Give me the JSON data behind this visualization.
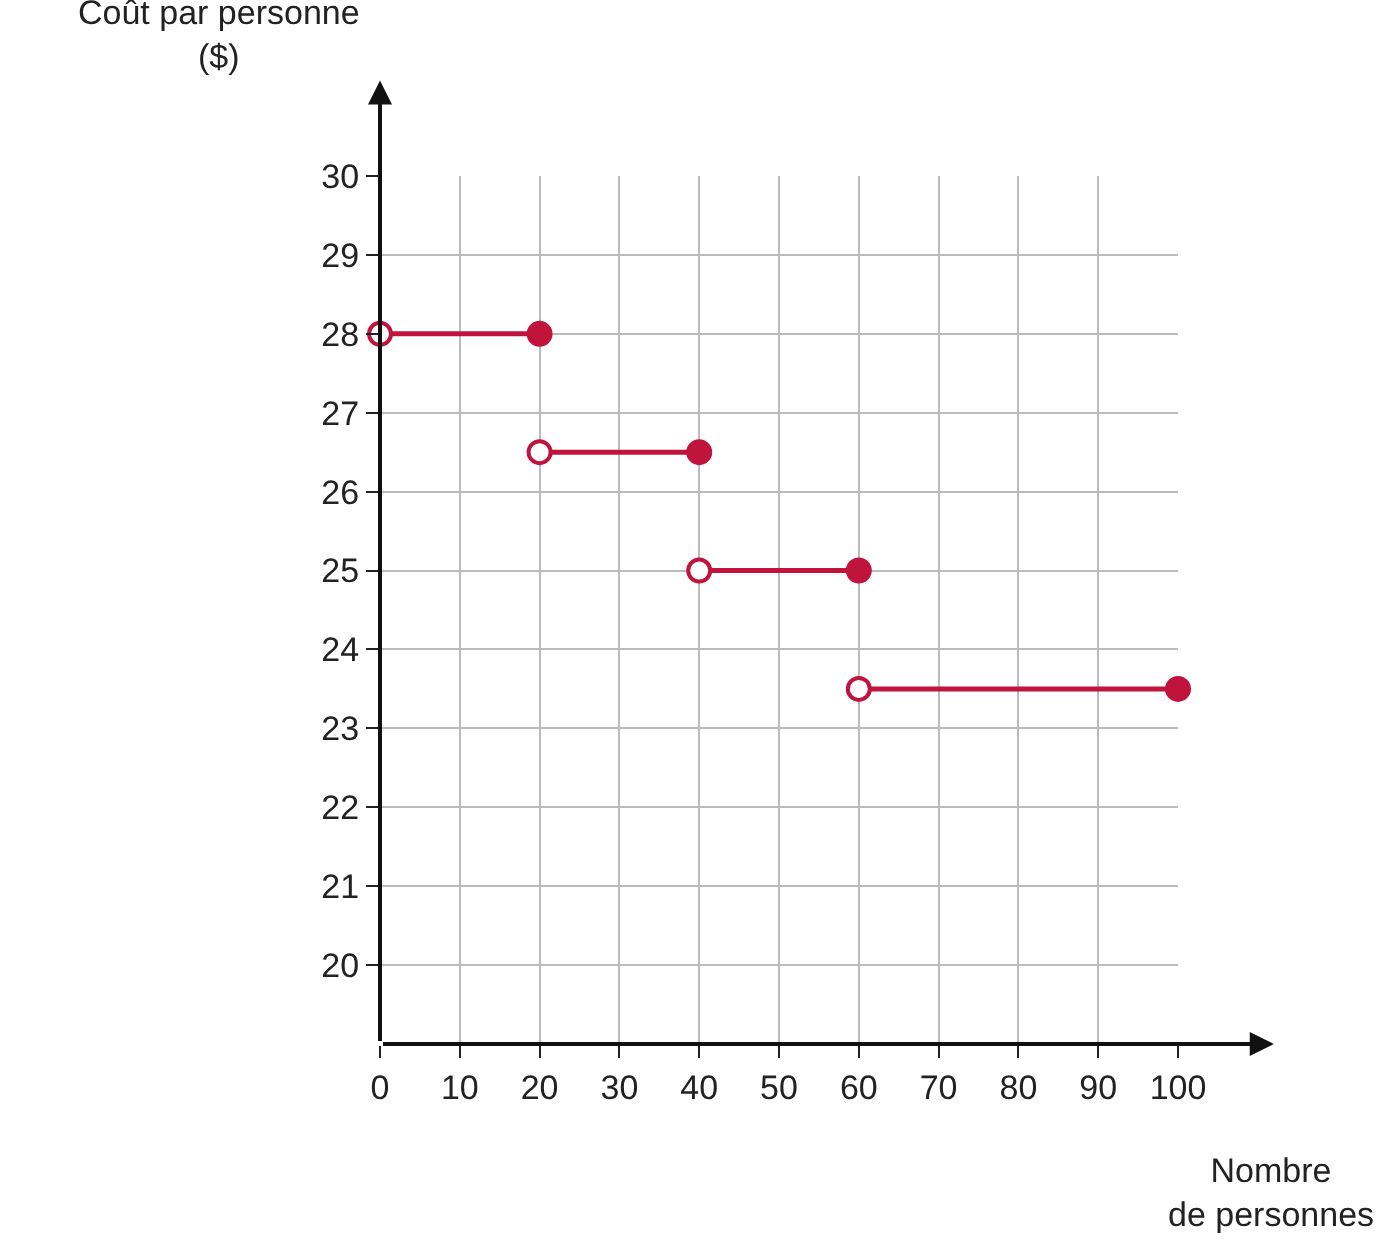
{
  "chart_data": {
    "type": "line",
    "xlabel": "Nombre\nde personnes",
    "ylabel": "Coût par personne\n($)",
    "series": [
      {
        "color": "#c0143c",
        "x": [
          0,
          20
        ],
        "values": [
          28,
          28
        ]
      },
      {
        "color": "#c0143c",
        "x": [
          20,
          40
        ],
        "values": [
          26.5,
          26.5
        ]
      },
      {
        "color": "#c0143c",
        "x": [
          40,
          60
        ],
        "values": [
          25,
          25
        ]
      },
      {
        "color": "#c0143c",
        "x": [
          60,
          100
        ],
        "values": [
          23.5,
          23.5
        ]
      }
    ],
    "xlim": [
      0,
      100
    ],
    "xticks": [
      0,
      10,
      20,
      30,
      40,
      50,
      60,
      70,
      80,
      90,
      100
    ],
    "ylim": [
      19,
      30
    ],
    "yticks": [
      20,
      21,
      22,
      23,
      24,
      25,
      26,
      27,
      28,
      29,
      30
    ],
    "grid": true,
    "legend": false,
    "marker": "circle",
    "line_style": "solid"
  }
}
